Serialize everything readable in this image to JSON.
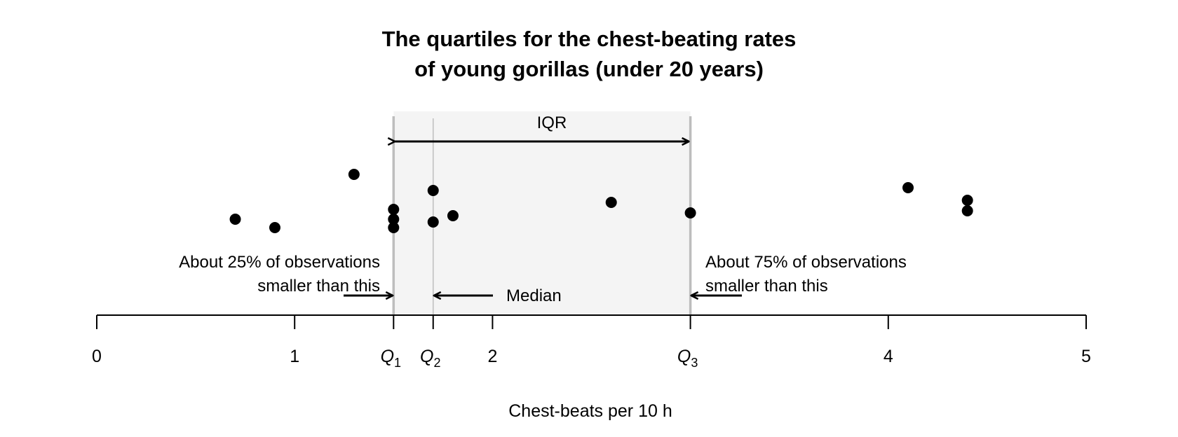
{
  "chart_data": {
    "type": "scatter",
    "title": [
      "The quartiles for the chest-beating rates",
      "of young gorillas (under 20 years)"
    ],
    "xlabel": "Chest-beats per 10 h",
    "ylabel": "",
    "xlim": [
      0,
      5
    ],
    "x_ticks": [
      0,
      1,
      2,
      4,
      5
    ],
    "x_tick_labels": [
      "0",
      "1",
      "2",
      "4",
      "5"
    ],
    "grid": false,
    "points": [
      0.7,
      0.9,
      1.3,
      1.5,
      1.5,
      1.5,
      1.7,
      1.7,
      1.8,
      2.6,
      3.0,
      4.1,
      4.4,
      4.4
    ],
    "quartiles": [
      {
        "label": "Q",
        "sub": "1",
        "value": 1.5
      },
      {
        "label": "Q",
        "sub": "2",
        "value": 1.7
      },
      {
        "label": "Q",
        "sub": "3",
        "value": 3.0
      }
    ],
    "annotations": {
      "iqr": "IQR",
      "median": "Median",
      "q1_note": [
        "About 25% of observations",
        "smaller than this"
      ],
      "q3_note": [
        "About 75% of observations",
        "smaller than this"
      ]
    },
    "colors": {
      "points": "#000000",
      "iqr_shade": "#f4f4f4",
      "quartile_lines": "#bdbdbd"
    }
  }
}
